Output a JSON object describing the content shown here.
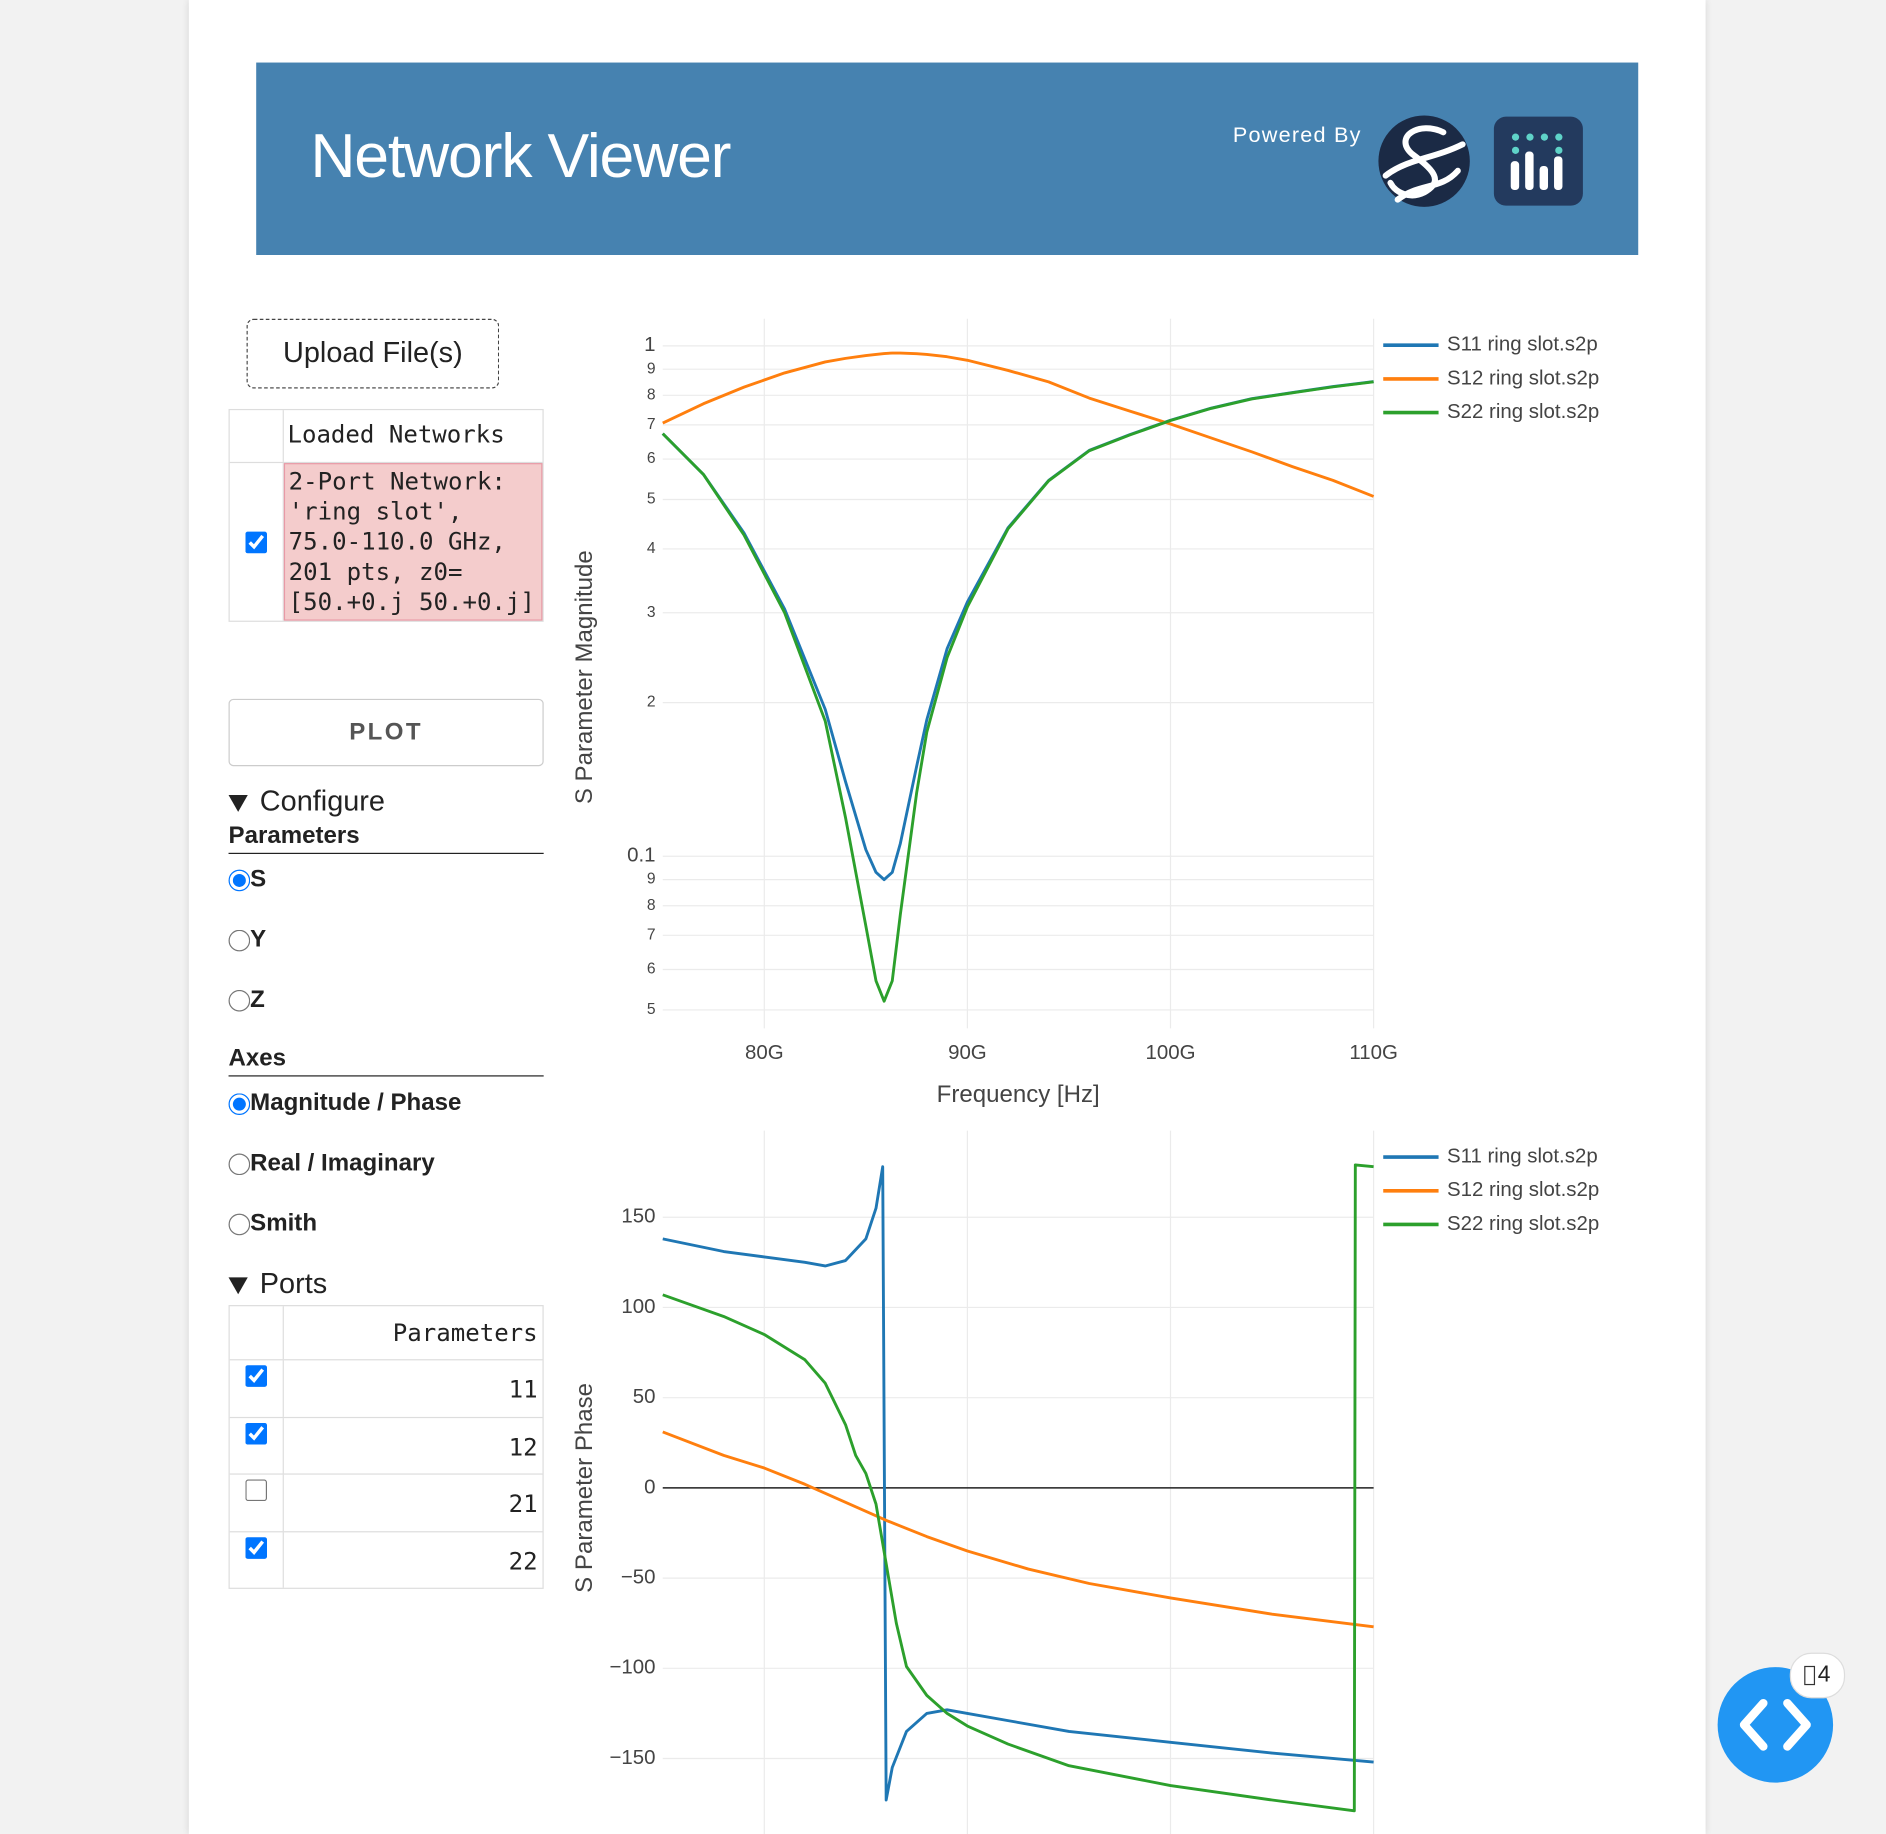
{
  "header": {
    "title": "Network Viewer",
    "powered_by": "Powered By"
  },
  "sidebar": {
    "upload": "Upload File(s)",
    "networks": {
      "header": "Loaded Networks",
      "rows": [
        {
          "checked": true,
          "label": "2-Port Network: 'ring slot', 75.0-110.0 GHz, 201 pts, z0=[50.+0.j 50.+0.j]"
        }
      ]
    },
    "plot": "PLOT",
    "configure": "Configure",
    "parameters": {
      "heading": "Parameters",
      "options": [
        "S",
        "Y",
        "Z"
      ],
      "selected": "S"
    },
    "axes": {
      "heading": "Axes",
      "options": [
        "Magnitude / Phase",
        "Real / Imaginary",
        "Smith"
      ],
      "selected": "Magnitude / Phase"
    },
    "ports": {
      "heading": "Ports",
      "header": "Parameters",
      "rows": [
        {
          "label": "11",
          "checked": true
        },
        {
          "label": "12",
          "checked": true
        },
        {
          "label": "21",
          "checked": false
        },
        {
          "label": "22",
          "checked": true
        }
      ]
    }
  },
  "badge": "4",
  "chart_data": [
    {
      "type": "line",
      "xlabel": "Frequency [Hz]",
      "ylabel": "S Parameter Magnitude",
      "log_y": true,
      "grid": true,
      "xlim": [
        75000000000.0,
        110000000000.0
      ],
      "xticks": [
        {
          "value": 80000000000.0,
          "label": "80G"
        },
        {
          "value": 90000000000.0,
          "label": "90G"
        },
        {
          "value": 100000000000.0,
          "label": "100G"
        },
        {
          "value": 110000000000.0,
          "label": "110G"
        }
      ],
      "ylim": [
        0.046,
        1.13
      ],
      "yticks": [
        1,
        {
          "value": 0.9,
          "label": "9"
        },
        {
          "value": 0.8,
          "label": "8"
        },
        {
          "value": 0.7,
          "label": "7"
        },
        {
          "value": 0.6,
          "label": "6"
        },
        {
          "value": 0.5,
          "label": "5"
        },
        {
          "value": 0.4,
          "label": "4"
        },
        {
          "value": 0.3,
          "label": "3"
        },
        {
          "value": 0.2,
          "label": "2"
        },
        0.1,
        {
          "value": 0.09,
          "label": "9"
        },
        {
          "value": 0.08,
          "label": "8"
        },
        {
          "value": 0.07,
          "label": "7"
        },
        {
          "value": 0.06,
          "label": "6"
        },
        {
          "value": 0.05,
          "label": "5"
        }
      ],
      "x": [
        75000000000.0,
        77000000000.0,
        79000000000.0,
        81000000000.0,
        83000000000.0,
        84000000000.0,
        85000000000.0,
        85500000000.0,
        85900000000.0,
        86300000000.0,
        86700000000.0,
        87500000000.0,
        88000000000.0,
        89000000000.0,
        90000000000.0,
        92000000000.0,
        94000000000.0,
        96000000000.0,
        98000000000.0,
        100000000000.0,
        102000000000.0,
        104000000000.0,
        106000000000.0,
        108000000000.0,
        110000000000.0
      ],
      "series": [
        {
          "name": "S11 ring slot.s2p",
          "color": "#1f77b4",
          "values": [
            0.673,
            0.56,
            0.43,
            0.305,
            0.194,
            0.14,
            0.103,
            0.093,
            0.09,
            0.093,
            0.106,
            0.15,
            0.185,
            0.255,
            0.315,
            0.44,
            0.545,
            0.624,
            0.67,
            0.715,
            0.755,
            0.788,
            0.81,
            0.832,
            0.851
          ]
        },
        {
          "name": "S12 ring slot.s2p",
          "color": "#ff7f0e",
          "values": [
            0.706,
            0.77,
            0.83,
            0.885,
            0.93,
            0.945,
            0.957,
            0.962,
            0.966,
            0.968,
            0.968,
            0.965,
            0.962,
            0.952,
            0.937,
            0.895,
            0.85,
            0.79,
            0.745,
            0.703,
            0.66,
            0.62,
            0.58,
            0.545,
            0.507
          ]
        },
        {
          "name": "S22 ring slot.s2p",
          "color": "#2ca02c",
          "values": [
            0.673,
            0.56,
            0.426,
            0.3,
            0.184,
            0.119,
            0.073,
            0.057,
            0.052,
            0.057,
            0.077,
            0.133,
            0.175,
            0.245,
            0.308,
            0.438,
            0.544,
            0.623,
            0.669,
            0.714,
            0.754,
            0.787,
            0.809,
            0.831,
            0.85
          ]
        }
      ]
    },
    {
      "type": "line",
      "ylabel": "S Parameter Phase",
      "grid": true,
      "zeroline": true,
      "xlim": [
        75000000000.0,
        110000000000.0
      ],
      "xticks": [
        80000000000.0,
        90000000000.0,
        100000000000.0,
        110000000000.0
      ],
      "ylim": [
        -192,
        198
      ],
      "yticks": [
        150,
        100,
        50,
        0,
        {
          "value": -50,
          "label": "−50"
        },
        {
          "value": -100,
          "label": "−100"
        },
        {
          "value": -150,
          "label": "−150"
        }
      ],
      "series": [
        {
          "name": "S11 ring slot.s2p",
          "color": "#1f77b4",
          "x": [
            75000000000.0,
            78000000000.0,
            80000000000.0,
            82000000000.0,
            83000000000.0,
            84000000000.0,
            85000000000.0,
            85500000000.0,
            85830000000.0,
            86000000000.0,
            86300000000.0,
            87000000000.0,
            88000000000.0,
            89000000000.0,
            90000000000.0,
            92000000000.0,
            95000000000.0,
            100000000000.0,
            105000000000.0,
            110000000000.0
          ],
          "values": [
            138,
            131,
            128,
            125,
            123,
            126,
            138,
            155,
            178,
            -173,
            -155,
            -135,
            -125,
            -123,
            -125,
            -129,
            -135,
            -141,
            -147,
            -152
          ]
        },
        {
          "name": "S12 ring slot.s2p",
          "color": "#ff7f0e",
          "x": [
            75000000000.0,
            78000000000.0,
            80000000000.0,
            82000000000.0,
            84000000000.0,
            86000000000.0,
            88000000000.0,
            90000000000.0,
            93000000000.0,
            96000000000.0,
            100000000000.0,
            105000000000.0,
            110000000000.0
          ],
          "values": [
            31,
            18,
            11,
            2,
            -8,
            -18,
            -27,
            -35,
            -45,
            -53,
            -61,
            -70,
            -77
          ]
        },
        {
          "name": "S22 ring slot.s2p",
          "color": "#2ca02c",
          "x": [
            75000000000.0,
            78000000000.0,
            80000000000.0,
            82000000000.0,
            83000000000.0,
            84000000000.0,
            84500000000.0,
            85000000000.0,
            85500000000.0,
            86000000000.0,
            86500000000.0,
            87000000000.0,
            88000000000.0,
            89000000000.0,
            90000000000.0,
            92000000000.0,
            95000000000.0,
            100000000000.0,
            105000000000.0,
            109050000000.0,
            109100000000.0,
            110000000000.0
          ],
          "values": [
            107,
            95,
            85,
            71,
            58,
            35,
            18,
            8,
            -9,
            -42,
            -75,
            -99,
            -115,
            -125,
            -132,
            -142,
            -154,
            -165,
            -173,
            -179,
            179,
            178
          ]
        }
      ]
    }
  ]
}
